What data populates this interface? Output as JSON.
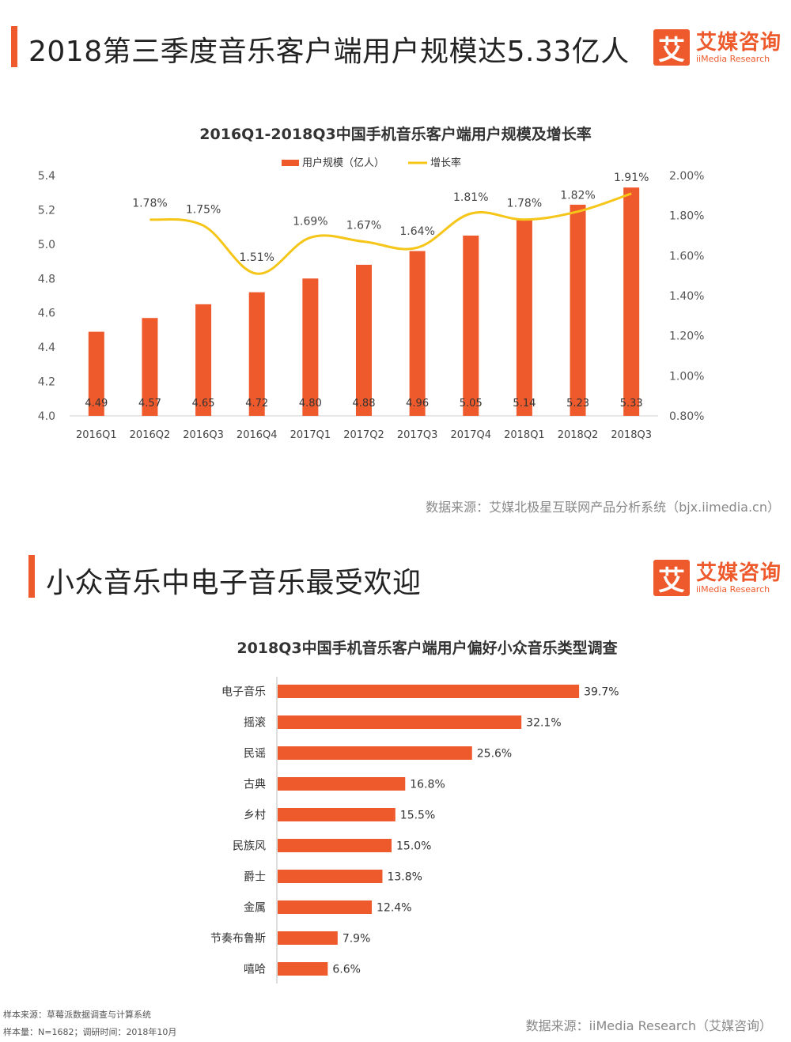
{
  "section1": {
    "title": "2018第三季度音乐客户端用户规模达5.33亿人",
    "source": "数据来源：艾媒北极星互联网产品分析系统（bjx.iimedia.cn）"
  },
  "section2": {
    "title": "小众音乐中电子音乐最受欢迎",
    "source": "数据来源：iiMedia Research（艾媒咨询）",
    "note1": "样本来源：草莓派数据调查与计算系统",
    "note2": "样本量：N=1682；调研时间：2018年10月"
  },
  "logo": {
    "mark": "艾",
    "cn": "艾媒咨询",
    "en": "iiMedia Research"
  },
  "colors": {
    "accent": "#ee5a2c",
    "line": "#f5c518"
  },
  "chart_data": [
    {
      "type": "bar+line",
      "title": "2016Q1-2018Q3中国手机音乐客户端用户规模及增长率",
      "legend": [
        "用户规模（亿人）",
        "增长率"
      ],
      "legend_position": "top-center",
      "categories": [
        "2016Q1",
        "2016Q2",
        "2016Q3",
        "2016Q4",
        "2017Q1",
        "2017Q2",
        "2017Q3",
        "2017Q4",
        "2018Q1",
        "2018Q2",
        "2018Q3"
      ],
      "series": [
        {
          "name": "用户规模（亿人）",
          "type": "bar",
          "axis": "left",
          "values": [
            4.49,
            4.57,
            4.65,
            4.72,
            4.8,
            4.88,
            4.96,
            5.05,
            5.14,
            5.23,
            5.33
          ],
          "labels": [
            "4.49",
            "4.57",
            "4.65",
            "4.72",
            "4.80",
            "4.88",
            "4.96",
            "5.05",
            "5.14",
            "5.23",
            "5.33"
          ]
        },
        {
          "name": "增长率",
          "type": "line",
          "axis": "right",
          "values": [
            null,
            1.78,
            1.75,
            1.51,
            1.69,
            1.67,
            1.64,
            1.81,
            1.78,
            1.82,
            1.91
          ],
          "labels": [
            "",
            "1.78%",
            "1.75%",
            "1.51%",
            "1.69%",
            "1.67%",
            "1.64%",
            "1.81%",
            "1.78%",
            "1.82%",
            "1.91%"
          ]
        }
      ],
      "y_left": {
        "range": [
          4.0,
          5.4
        ],
        "ticks": [
          "4.0",
          "4.2",
          "4.4",
          "4.6",
          "4.8",
          "5.0",
          "5.2",
          "5.4"
        ]
      },
      "y_right": {
        "range": [
          0.8,
          2.0
        ],
        "ticks": [
          "0.80%",
          "1.00%",
          "1.20%",
          "1.40%",
          "1.60%",
          "1.80%",
          "2.00%"
        ]
      }
    },
    {
      "type": "bar-horizontal",
      "title": "2018Q3中国手机音乐客户端用户偏好小众音乐类型调查",
      "categories": [
        "电子音乐",
        "摇滚",
        "民谣",
        "古典",
        "乡村",
        "民族风",
        "爵士",
        "金属",
        "节奏布鲁斯",
        "嘻哈"
      ],
      "values": [
        39.7,
        32.1,
        25.6,
        16.8,
        15.5,
        15.0,
        13.8,
        12.4,
        7.9,
        6.6
      ],
      "labels": [
        "39.7%",
        "32.1%",
        "25.6%",
        "16.8%",
        "15.5%",
        "15.0%",
        "13.8%",
        "12.4%",
        "7.9%",
        "6.6%"
      ],
      "unit": "%"
    }
  ]
}
